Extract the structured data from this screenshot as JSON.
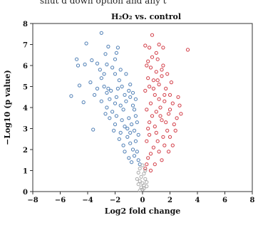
{
  "caption_fragment": "shut d down option and any t",
  "chart_data": {
    "type": "scatter",
    "title": "H₂O₂ vs. control",
    "xlabel": "Log2 fold change",
    "ylabel": "−Log10 (p value)",
    "xlim": [
      -8,
      8
    ],
    "ylim": [
      0,
      8
    ],
    "xticks": [
      "−8",
      "−6",
      "−4",
      "−2",
      "0",
      "2",
      "4",
      "6",
      "8"
    ],
    "yticks": [
      "0",
      "1",
      "2",
      "3",
      "4",
      "5",
      "6",
      "7",
      "8"
    ],
    "grid": false,
    "legend": "none",
    "colors": {
      "down": "#4f7fb5",
      "up": "#d23c46",
      "ns": "#a9a9a9"
    },
    "series": [
      {
        "values": [
          [
            -3.0,
            7.55
          ],
          [
            -4.1,
            7.05
          ],
          [
            -2.5,
            6.9
          ],
          [
            -1.8,
            6.85
          ],
          [
            -1.9,
            6.6
          ],
          [
            -2.7,
            6.55
          ],
          [
            -4.8,
            6.3
          ],
          [
            -4.7,
            6.0
          ],
          [
            -4.2,
            6.05
          ],
          [
            -3.7,
            6.25
          ],
          [
            -5.2,
            4.55
          ],
          [
            -4.6,
            5.05
          ],
          [
            -4.3,
            4.25
          ],
          [
            -3.6,
            2.95
          ],
          [
            -3.3,
            6.1
          ],
          [
            -3.1,
            5.8
          ],
          [
            -3.0,
            5.4
          ],
          [
            -2.8,
            5.0
          ],
          [
            -2.6,
            4.7
          ],
          [
            -2.4,
            4.4
          ],
          [
            -3.3,
            4.9
          ],
          [
            -3.8,
            5.2
          ],
          [
            -2.2,
            5.9
          ],
          [
            -2.0,
            5.6
          ],
          [
            -1.7,
            5.3
          ],
          [
            -1.5,
            5.0
          ],
          [
            -2.3,
            4.8
          ],
          [
            -1.9,
            4.5
          ],
          [
            -2.6,
            4.0
          ],
          [
            -2.2,
            3.8
          ],
          [
            -1.9,
            3.6
          ],
          [
            -1.6,
            4.1
          ],
          [
            -1.4,
            3.9
          ],
          [
            -1.2,
            4.3
          ],
          [
            -1.0,
            3.5
          ],
          [
            -0.8,
            3.2
          ],
          [
            -1.3,
            3.1
          ],
          [
            -1.6,
            2.8
          ],
          [
            -1.1,
            2.6
          ],
          [
            -0.9,
            2.3
          ],
          [
            -0.7,
            2.0
          ],
          [
            -0.6,
            1.7
          ],
          [
            -1.4,
            2.2
          ],
          [
            -2.0,
            3.2
          ],
          [
            -2.4,
            3.5
          ],
          [
            -1.8,
            4.9
          ],
          [
            -1.2,
            5.6
          ],
          [
            -0.9,
            5.1
          ],
          [
            -0.7,
            4.7
          ],
          [
            -0.5,
            4.4
          ],
          [
            -0.6,
            3.9
          ],
          [
            -0.4,
            3.3
          ],
          [
            -0.3,
            2.7
          ],
          [
            -0.5,
            2.4
          ],
          [
            -0.4,
            1.9
          ],
          [
            -0.3,
            1.5
          ],
          [
            -0.2,
            1.3
          ],
          [
            -1.0,
            4.8
          ],
          [
            -1.6,
            5.8
          ],
          [
            -2.8,
            5.6
          ],
          [
            -2.0,
            6.3
          ],
          [
            -2.6,
            6.05
          ],
          [
            -3.5,
            4.6
          ],
          [
            -3.0,
            4.3
          ],
          [
            -2.7,
            3.7
          ],
          [
            -2.1,
            2.9
          ],
          [
            -1.7,
            2.5
          ],
          [
            -1.3,
            1.9
          ],
          [
            -1.0,
            1.6
          ],
          [
            -0.8,
            1.4
          ],
          [
            -1.5,
            3.4
          ],
          [
            -1.1,
            3.0
          ],
          [
            -0.9,
            2.8
          ],
          [
            -0.6,
            2.9
          ],
          [
            -0.5,
            3.6
          ],
          [
            -0.7,
            4.1
          ],
          [
            -0.9,
            4.5
          ],
          [
            -1.3,
            4.6
          ],
          [
            -2.0,
            4.2
          ],
          [
            -2.5,
            4.9
          ]
        ]
      },
      {
        "values": [
          [
            0.7,
            7.45
          ],
          [
            1.2,
            7.0
          ],
          [
            1.5,
            6.85
          ],
          [
            0.2,
            6.95
          ],
          [
            0.5,
            6.85
          ],
          [
            3.3,
            6.75
          ],
          [
            0.4,
            6.2
          ],
          [
            0.3,
            6.0
          ],
          [
            0.6,
            5.9
          ],
          [
            1.0,
            5.7
          ],
          [
            1.4,
            5.5
          ],
          [
            0.8,
            5.3
          ],
          [
            1.2,
            5.1
          ],
          [
            1.7,
            4.9
          ],
          [
            2.0,
            4.6
          ],
          [
            1.6,
            4.3
          ],
          [
            1.3,
            4.0
          ],
          [
            1.0,
            3.8
          ],
          [
            0.7,
            3.6
          ],
          [
            0.5,
            3.3
          ],
          [
            0.9,
            3.1
          ],
          [
            1.4,
            3.4
          ],
          [
            1.9,
            3.7
          ],
          [
            2.2,
            4.2
          ],
          [
            2.6,
            4.5
          ],
          [
            2.8,
            3.7
          ],
          [
            2.3,
            3.2
          ],
          [
            1.8,
            2.9
          ],
          [
            1.5,
            2.6
          ],
          [
            1.1,
            2.4
          ],
          [
            0.8,
            2.1
          ],
          [
            0.6,
            1.8
          ],
          [
            0.4,
            1.6
          ],
          [
            0.3,
            1.3
          ],
          [
            0.2,
            1.1
          ],
          [
            1.2,
            1.9
          ],
          [
            1.6,
            2.2
          ],
          [
            2.0,
            2.6
          ],
          [
            2.4,
            2.9
          ],
          [
            2.1,
            5.2
          ],
          [
            1.8,
            5.6
          ],
          [
            1.5,
            6.0
          ],
          [
            1.1,
            6.3
          ],
          [
            0.9,
            4.6
          ],
          [
            0.6,
            4.2
          ],
          [
            0.3,
            3.9
          ],
          [
            0.2,
            4.8
          ],
          [
            0.4,
            5.4
          ],
          [
            0.5,
            2.7
          ],
          [
            0.3,
            2.4
          ],
          [
            1.0,
            2.8
          ],
          [
            1.3,
            3.6
          ],
          [
            1.7,
            3.3
          ],
          [
            2.5,
            3.5
          ],
          [
            2.2,
            2.2
          ],
          [
            1.9,
            1.9
          ],
          [
            1.4,
            1.5
          ],
          [
            0.9,
            1.3
          ],
          [
            0.6,
            1.0
          ],
          [
            1.6,
            4.6
          ],
          [
            1.2,
            4.4
          ],
          [
            0.8,
            4.9
          ],
          [
            0.5,
            5.0
          ],
          [
            1.1,
            5.3
          ],
          [
            1.4,
            5.8
          ],
          [
            0.7,
            6.4
          ],
          [
            1.0,
            6.6
          ],
          [
            2.0,
            3.9
          ],
          [
            2.7,
            4.1
          ],
          [
            0.4,
            3.0
          ]
        ]
      },
      {
        "values": [
          [
            -0.3,
            0.9
          ],
          [
            0.1,
            0.85
          ],
          [
            -0.1,
            0.7
          ],
          [
            0.2,
            0.6
          ],
          [
            -0.2,
            0.5
          ],
          [
            0.0,
            0.4
          ],
          [
            0.1,
            0.3
          ],
          [
            -0.3,
            0.35
          ],
          [
            0.3,
            0.25
          ],
          [
            -0.1,
            0.2
          ],
          [
            0.0,
            0.1
          ],
          [
            0.2,
            1.0
          ],
          [
            -0.2,
            1.1
          ],
          [
            0.0,
            1.25
          ],
          [
            0.3,
            0.45
          ],
          [
            -0.4,
            0.6
          ],
          [
            0.1,
            0.15
          ],
          [
            -0.2,
            0.05
          ]
        ]
      }
    ]
  }
}
